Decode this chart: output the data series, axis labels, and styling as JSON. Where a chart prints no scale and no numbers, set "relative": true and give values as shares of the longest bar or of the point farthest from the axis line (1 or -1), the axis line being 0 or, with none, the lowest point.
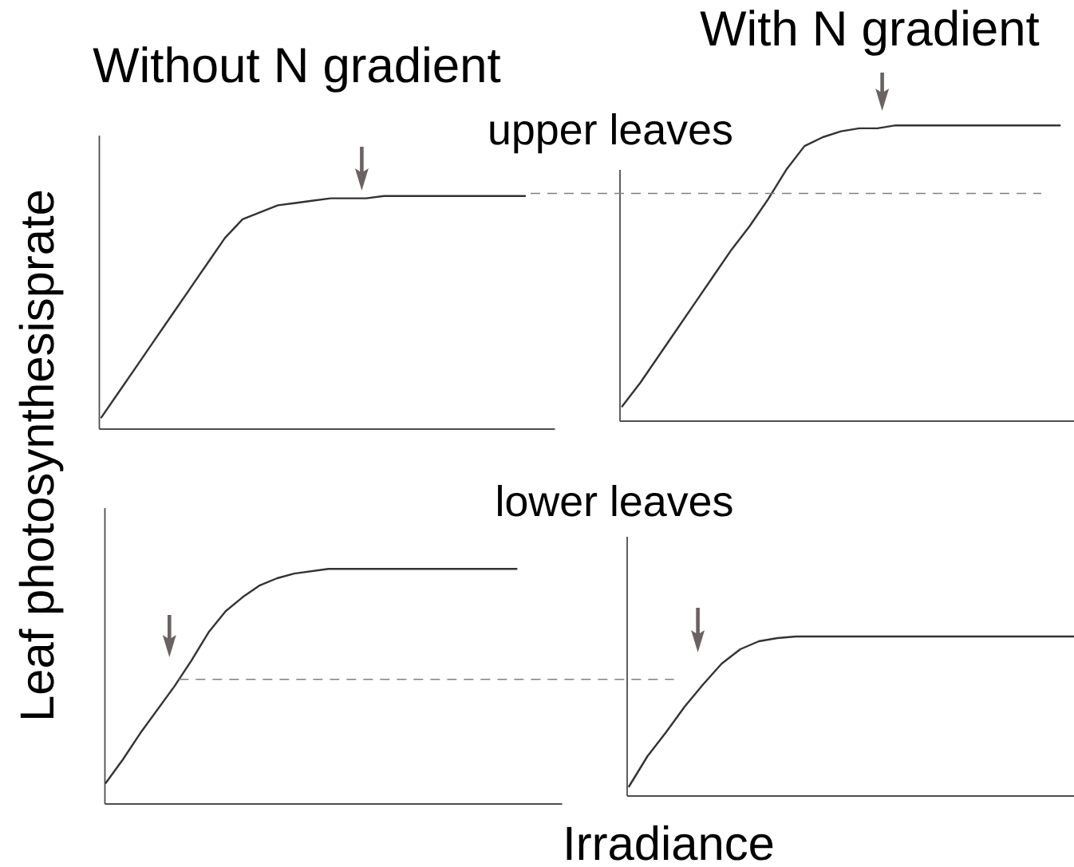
{
  "chart_data": [
    {
      "type": "line",
      "title": "Without N gradient",
      "ylabel": "Leaf photosynthesisprate",
      "relative": true,
      "categories": [
        null,
        null,
        null,
        null,
        null,
        null,
        null,
        null,
        null,
        null,
        null,
        null,
        null,
        null,
        null,
        null,
        null,
        null,
        null,
        null,
        null,
        null,
        null,
        null,
        null
      ],
      "series": [
        {
          "color": "#333333",
          "values": [
            0.05,
            0.16,
            0.27,
            0.38,
            0.49,
            0.6,
            0.71,
            0.82,
            0.9,
            0.93,
            0.96,
            0.97,
            0.98,
            0.99,
            0.99,
            0.99,
            1.0,
            1.0,
            1.0,
            1.0,
            1.0,
            1.0,
            1.0,
            1.0,
            1.0
          ]
        }
      ]
    },
    {
      "type": "line",
      "title": "With N gradient",
      "annotations": [
        "upper leaves"
      ],
      "relative": true,
      "categories": [
        null,
        null,
        null,
        null,
        null,
        null,
        null,
        null,
        null,
        null,
        null,
        null,
        null,
        null,
        null,
        null,
        null,
        null,
        null,
        null,
        null,
        null,
        null,
        null,
        null
      ],
      "series": [
        {
          "color": "#333333",
          "values": [
            0.05,
            0.13,
            0.22,
            0.31,
            0.4,
            0.49,
            0.58,
            0.66,
            0.75,
            0.85,
            0.93,
            0.96,
            0.98,
            0.99,
            0.99,
            1.0,
            1.0,
            1.0,
            1.0,
            1.0,
            1.0,
            1.0,
            1.0,
            1.0,
            1.0
          ]
        }
      ],
      "ref_lines": [
        {
          "axis": "y",
          "value": 0.77,
          "color": "#808080",
          "line_style": "dashed"
        }
      ]
    },
    {
      "type": "line",
      "relative": true,
      "categories": [
        null,
        null,
        null,
        null,
        null,
        null,
        null,
        null,
        null,
        null,
        null,
        null,
        null,
        null,
        null,
        null,
        null,
        null,
        null,
        null,
        null,
        null,
        null,
        null,
        null
      ],
      "series": [
        {
          "color": "#333333",
          "values": [
            0.09,
            0.19,
            0.3,
            0.4,
            0.5,
            0.61,
            0.73,
            0.82,
            0.88,
            0.93,
            0.96,
            0.98,
            0.99,
            1.0,
            1.0,
            1.0,
            1.0,
            1.0,
            1.0,
            1.0,
            1.0,
            1.0,
            1.0,
            1.0,
            1.0
          ]
        }
      ],
      "ref_lines": [
        {
          "axis": "y",
          "value": 0.53,
          "color": "#808080",
          "line_style": "dashed"
        }
      ]
    },
    {
      "type": "line",
      "xlabel": "Irradiance",
      "annotations": [
        "lower leaves"
      ],
      "relative": true,
      "categories": [
        null,
        null,
        null,
        null,
        null,
        null,
        null,
        null,
        null,
        null,
        null,
        null,
        null,
        null,
        null,
        null,
        null,
        null,
        null,
        null,
        null,
        null,
        null,
        null,
        null
      ],
      "series": [
        {
          "color": "#333333",
          "values": [
            0.06,
            0.25,
            0.4,
            0.56,
            0.7,
            0.83,
            0.92,
            0.97,
            0.99,
            1.0,
            1.0,
            1.0,
            1.0,
            1.0,
            1.0,
            1.0,
            1.0,
            1.0,
            1.0,
            1.0,
            1.0,
            1.0,
            1.0,
            1.0,
            1.0
          ]
        }
      ]
    }
  ]
}
